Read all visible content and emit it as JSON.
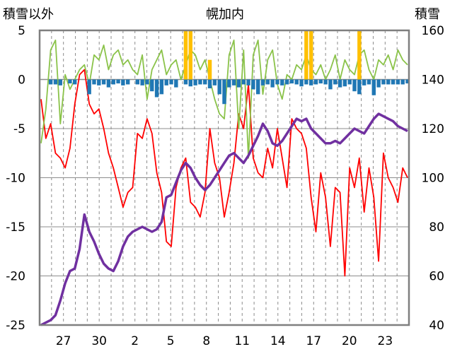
{
  "chart_data": {
    "type": "line",
    "title": "幌加内",
    "left_axis_label": "積雪以外",
    "right_axis_label": "積雪",
    "left_axis": {
      "min": -25,
      "max": 5,
      "ticks": [
        "5",
        "0",
        "-5",
        "-10",
        "-15",
        "-20",
        "-25"
      ]
    },
    "right_axis": {
      "min": 40,
      "max": 160,
      "ticks": [
        "160",
        "140",
        "120",
        "100",
        "80",
        "60",
        "40"
      ]
    },
    "x_axis": {
      "type": "date",
      "start": "2025-01-25",
      "end": "2025-02-25",
      "tick_labels": [
        "27",
        "30",
        "2",
        "5",
        "8",
        "11",
        "14",
        "17",
        "20",
        "23"
      ]
    },
    "grid": {
      "horizontal": true,
      "vertical_dashed_per_day": true
    },
    "series": [
      {
        "color": "#ff0000",
        "axis": "left",
        "values": [
          -2.0,
          -6.0,
          -4.5,
          -7.5,
          -8.0,
          -9.0,
          -7.0,
          -2.5,
          0.5,
          1.0,
          -2.5,
          -3.5,
          -3.0,
          -5.0,
          -7.5,
          -9.0,
          -11.0,
          -13.0,
          -11.5,
          -11.0,
          -5.5,
          -6.0,
          -4.0,
          -5.5,
          -9.5,
          -11.5,
          -16.5,
          -17.0,
          -11.0,
          -9.0,
          -8.0,
          -12.5,
          -13.0,
          -14.0,
          -11.5,
          -5.0,
          -8.5,
          -10.0,
          -14.0,
          -11.5,
          -8.5,
          -3.5,
          -5.0,
          -0.5,
          -8.0,
          -9.5,
          -10.0,
          -7.0,
          -9.0,
          -5.0,
          -8.0,
          -11.0,
          -4.0,
          -5.0,
          -5.5,
          -7.0,
          -12.0,
          -15.5,
          -9.5,
          -12.0,
          -17.0,
          -11.0,
          -11.5,
          -20.0,
          -9.0,
          -11.0,
          -8.0,
          -13.5,
          -9.0,
          -12.0,
          -18.5,
          -7.5,
          -10.0,
          -11.0,
          -12.5,
          -9.0,
          -10.0
        ]
      },
      {
        "color": "#8bc34a",
        "axis": "left",
        "values": [
          -6.5,
          -3.0,
          3.0,
          4.0,
          -4.5,
          0.5,
          -1.0,
          0.0,
          1.0,
          1.5,
          -0.5,
          2.5,
          2.0,
          3.5,
          1.0,
          2.5,
          3.0,
          1.5,
          2.0,
          1.0,
          0.5,
          2.5,
          -2.0,
          1.0,
          2.0,
          3.0,
          0.5,
          1.5,
          2.0,
          0.0,
          1.5,
          3.0,
          2.5,
          1.0,
          2.0,
          0.0,
          -2.0,
          -3.5,
          -4.0,
          2.5,
          4.0,
          -5.0,
          3.0,
          -8.0,
          2.5,
          4.0,
          -1.5,
          2.0,
          3.0,
          -0.5,
          -2.0,
          0.5,
          0.0,
          1.5,
          1.0,
          2.5,
          1.0,
          0.5,
          1.5,
          0.0,
          1.0,
          2.5,
          0.0,
          2.0,
          1.0,
          0.5,
          2.5,
          3.0,
          1.0,
          0.0,
          2.0,
          1.5,
          2.5,
          1.0,
          3.0,
          2.0,
          1.5
        ]
      },
      {
        "color": "#7030a0",
        "axis": "right",
        "values": [
          40.0,
          41.0,
          42.0,
          44.0,
          50.0,
          57.0,
          62.0,
          63.0,
          71.0,
          85.0,
          78.0,
          74.0,
          69.0,
          65.0,
          63.0,
          62.0,
          66.0,
          72.0,
          76.0,
          78.0,
          79.0,
          80.0,
          79.0,
          78.0,
          79.0,
          82.0,
          92.0,
          93.0,
          98.0,
          103.0,
          106.0,
          104.0,
          100.0,
          97.0,
          95.0,
          97.0,
          100.0,
          103.0,
          106.0,
          109.0,
          110.0,
          108.0,
          106.0,
          109.0,
          113.0,
          117.0,
          122.0,
          119.0,
          114.0,
          113.0,
          115.0,
          118.0,
          121.0,
          124.0,
          123.0,
          124.0,
          120.0,
          118.0,
          116.0,
          114.0,
          114.0,
          115.0,
          114.0,
          116.0,
          118.0,
          120.0,
          119.0,
          118.0,
          121.0,
          124.0,
          126.0,
          125.0,
          124.0,
          123.0,
          121.0,
          120.0,
          119.0
        ]
      },
      {
        "color": "#ffc000",
        "axis": "left",
        "type": "bar",
        "values": [
          0.0,
          0.0,
          0.0,
          0.0,
          0.0,
          0.0,
          0.0,
          0.0,
          0.0,
          0.0,
          0.0,
          0.0,
          0.0,
          0.0,
          0.0,
          0.0,
          0.0,
          0.0,
          0.0,
          0.0,
          0.0,
          0.0,
          0.0,
          0.0,
          0.0,
          0.0,
          0.0,
          0.0,
          0.0,
          0.0,
          5.0,
          5.0,
          0.0,
          0.0,
          0.0,
          2.0,
          0.0,
          0.0,
          0.0,
          0.0,
          0.0,
          0.0,
          0.0,
          0.0,
          0.0,
          0.0,
          0.0,
          0.0,
          0.0,
          0.0,
          0.0,
          0.0,
          0.0,
          0.0,
          0.0,
          5.0,
          5.0,
          0.0,
          0.0,
          0.0,
          0.0,
          0.0,
          0.0,
          0.0,
          0.0,
          0.0,
          5.0,
          0.0,
          0.0,
          0.0,
          0.0,
          0.0,
          0.0,
          0.0,
          0.0,
          0.0,
          0.0
        ]
      },
      {
        "color": "#1f77b4",
        "axis": "left",
        "type": "bar",
        "values": [
          0.0,
          0.0,
          -0.5,
          -0.5,
          -0.6,
          0.0,
          -0.4,
          -0.5,
          0.0,
          0.0,
          -1.5,
          -0.5,
          -0.6,
          -0.5,
          -0.8,
          -0.5,
          -0.4,
          -0.6,
          -0.5,
          0.0,
          -0.5,
          -0.6,
          -0.5,
          -1.2,
          -1.8,
          -1.5,
          -0.6,
          -0.5,
          -0.8,
          0.0,
          -0.5,
          -0.7,
          -0.6,
          -0.5,
          -0.5,
          -0.9,
          -0.6,
          -1.5,
          -2.5,
          -0.8,
          -0.6,
          -0.8,
          -0.5,
          -0.6,
          -1.0,
          -1.5,
          -0.6,
          -0.5,
          -0.8,
          -0.5,
          -0.6,
          -0.5,
          -0.4,
          -0.5,
          -0.7,
          -0.5,
          -0.6,
          -0.5,
          -0.4,
          -0.5,
          -1.0,
          -0.5,
          -0.8,
          -0.7,
          -0.5,
          -1.2,
          -1.5,
          -0.6,
          -0.5,
          -1.6,
          -0.8,
          -0.5,
          -0.5,
          -0.5,
          -0.5,
          -0.5,
          -0.4
        ]
      }
    ]
  }
}
